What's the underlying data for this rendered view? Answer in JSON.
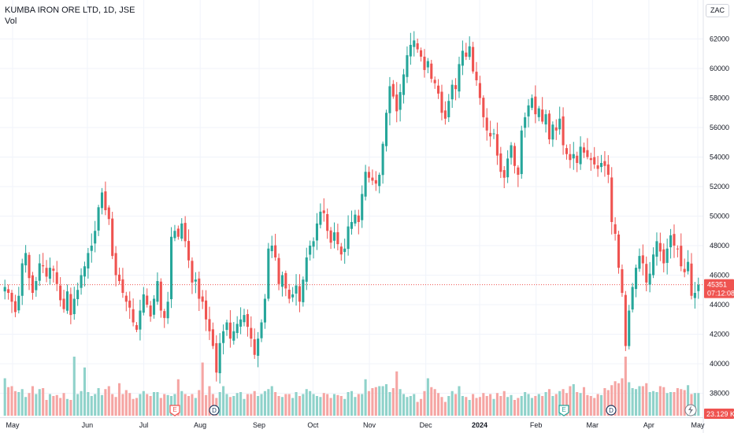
{
  "legend": {
    "symbol": "KUMBA IRON ORE LTD, 1D, JSE",
    "volume_label": "Vol"
  },
  "currency_button": "ZAC",
  "price_tag": {
    "price": "45351",
    "countdown": "07:12:08"
  },
  "volume_tag": "23.129 K",
  "colors": {
    "up": "#26a69a",
    "down": "#ef5350",
    "up_volume": "#8fd2ca",
    "down_volume": "#f5a5a3",
    "grid": "#f0f3fa",
    "price_line": "#ef5350"
  },
  "event_markers": [
    {
      "label": "E",
      "type": "earnings",
      "month_position": "Jul end"
    },
    {
      "label": "D",
      "type": "dividend",
      "month_position": "Aug start"
    },
    {
      "label": "E",
      "type": "earnings",
      "month_position": "Feb end"
    },
    {
      "label": "D",
      "type": "dividend",
      "month_position": "Mar mid"
    }
  ],
  "chart_data": {
    "type": "candlestick",
    "title": "KUMBA IRON ORE LTD, 1D, JSE",
    "currency": "ZAC",
    "x_tick_labels": [
      "May",
      "Jun",
      "Jul",
      "Aug",
      "Sep",
      "Oct",
      "Nov",
      "Dec",
      "2024",
      "Feb",
      "Mar",
      "Apr",
      "May"
    ],
    "y_tick_labels": [
      "38000",
      "40000",
      "42000",
      "44000",
      "46000",
      "48000",
      "50000",
      "52000",
      "54000",
      "56000",
      "58000",
      "60000",
      "62000"
    ],
    "ylim": [
      36800,
      64000
    ],
    "last_price": 45351,
    "grid": true,
    "approx_daily_closes": [
      45200,
      44800,
      44200,
      43500,
      44600,
      46800,
      47500,
      45800,
      44800,
      45600,
      46800,
      46600,
      45900,
      46500,
      46300,
      45400,
      44300,
      43700,
      44900,
      43300,
      44400,
      45000,
      46000,
      46600,
      47500,
      48000,
      49000,
      50600,
      51600,
      50400,
      49800,
      47300,
      46000,
      45600,
      44800,
      44200,
      43800,
      42800,
      42300,
      43600,
      44700,
      44000,
      43200,
      44400,
      45600,
      43600,
      43100,
      44200,
      48600,
      49000,
      48600,
      49500,
      48300,
      47000,
      45500,
      45700,
      44400,
      44200,
      43000,
      42200,
      41200,
      39400,
      41400,
      42200,
      42800,
      41700,
      42200,
      42700,
      43000,
      43300,
      42500,
      41700,
      40600,
      41700,
      42800,
      44400,
      47800,
      48000,
      47200,
      45400,
      46000,
      45100,
      44400,
      44700,
      45300,
      44200,
      45700,
      47200,
      48000,
      48300,
      49500,
      50300,
      50200,
      49000,
      48200,
      48900,
      48100,
      47400,
      47800,
      49300,
      49600,
      50100,
      49600,
      51500,
      53000,
      52600,
      52400,
      52200,
      52800,
      54900,
      57000,
      58800,
      58100,
      57100,
      58400,
      59600,
      60900,
      61600,
      61900,
      61300,
      60800,
      59900,
      60500,
      59300,
      59000,
      58300,
      57000,
      56600,
      57800,
      58900,
      58600,
      60300,
      61200,
      60800,
      61500,
      59800,
      59200,
      58000,
      56700,
      55800,
      55400,
      55600,
      54100,
      53000,
      52600,
      53900,
      54800,
      53400,
      52800,
      55800,
      56700,
      57500,
      58000,
      56900,
      57300,
      56400,
      56900,
      55200,
      56200,
      55800,
      56600,
      54800,
      54200,
      53800,
      54200,
      53600,
      54700,
      54300,
      54000,
      53800,
      53500,
      53200,
      53600,
      53400,
      52800,
      49600,
      48800,
      46500,
      44800,
      41200,
      43600,
      45200,
      46500,
      47300,
      46800,
      45500,
      46100,
      47400,
      48300,
      47600,
      46800,
      47800,
      48700,
      48000,
      47800,
      46600,
      46200,
      46900,
      44600,
      44800,
      45351
    ],
    "approx_daily_volumes_k": [
      38,
      29,
      30,
      25,
      24,
      27,
      19,
      23,
      30,
      22,
      27,
      28,
      16,
      22,
      20,
      21,
      18,
      23,
      17,
      16,
      60,
      22,
      25,
      49,
      24,
      20,
      22,
      28,
      21,
      27,
      30,
      22,
      19,
      33,
      22,
      26,
      23,
      17,
      18,
      22,
      25,
      22,
      20,
      24,
      24,
      18,
      22,
      21,
      20,
      22,
      37,
      25,
      22,
      20,
      22,
      18,
      26,
      54,
      21,
      30,
      22,
      18,
      24,
      30,
      22,
      19,
      20,
      23,
      24,
      17,
      22,
      22,
      25,
      20,
      22,
      25,
      27,
      30,
      24,
      20,
      19,
      22,
      22,
      18,
      24,
      20,
      22,
      27,
      25,
      22,
      20,
      19,
      23,
      22,
      18,
      22,
      21,
      20,
      17,
      24,
      25,
      19,
      22,
      22,
      37,
      25,
      28,
      29,
      30,
      30,
      32,
      24,
      28,
      45,
      27,
      22,
      19,
      20,
      22,
      14,
      17,
      25,
      38,
      29,
      27,
      23,
      19,
      14,
      20,
      25,
      22,
      30,
      20,
      19,
      16,
      22,
      18,
      19,
      23,
      20,
      22,
      17,
      23,
      20,
      25,
      19,
      21,
      16,
      18,
      20,
      24,
      22,
      18,
      20,
      22,
      20,
      24,
      27,
      20,
      22,
      25,
      27,
      23,
      30,
      32,
      24,
      23,
      29,
      21,
      20,
      18,
      22,
      21,
      28,
      26,
      31,
      35,
      33,
      38,
      60,
      34,
      28,
      27,
      30,
      30,
      33,
      24,
      25,
      24,
      30,
      29,
      23,
      24,
      24,
      28,
      27,
      26,
      31,
      22,
      23,
      23
    ]
  }
}
